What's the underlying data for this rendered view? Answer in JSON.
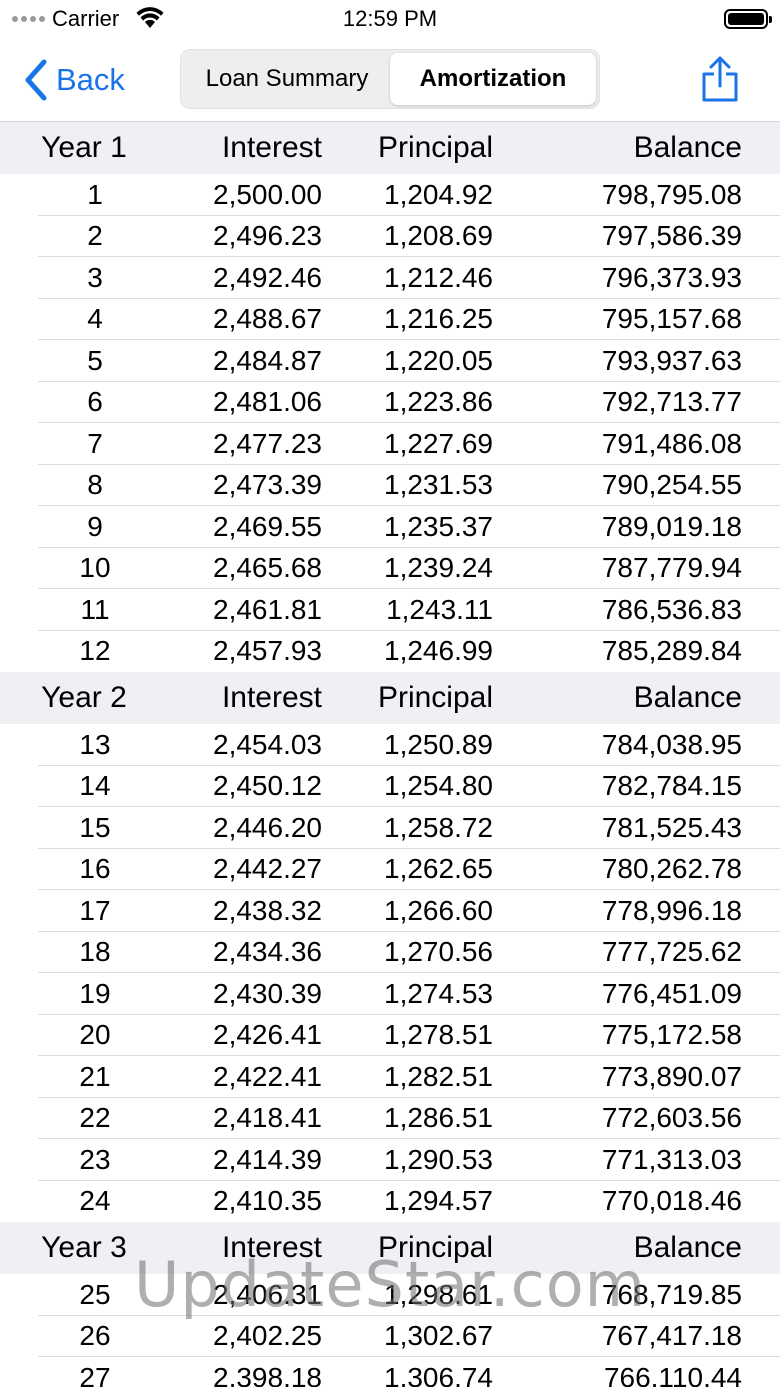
{
  "status_bar": {
    "carrier": "Carrier",
    "time": "12:59 PM"
  },
  "nav": {
    "back_label": "Back",
    "segments": [
      {
        "label": "Loan Summary",
        "selected": false
      },
      {
        "label": "Amortization",
        "selected": true
      }
    ],
    "accent_color": "#1a73e8"
  },
  "table": {
    "columns": [
      "Interest",
      "Principal",
      "Balance"
    ],
    "sections": [
      {
        "title": "Year 1",
        "rows": [
          [
            "1",
            "2,500.00",
            "1,204.92",
            "798,795.08"
          ],
          [
            "2",
            "2,496.23",
            "1,208.69",
            "797,586.39"
          ],
          [
            "3",
            "2,492.46",
            "1,212.46",
            "796,373.93"
          ],
          [
            "4",
            "2,488.67",
            "1,216.25",
            "795,157.68"
          ],
          [
            "5",
            "2,484.87",
            "1,220.05",
            "793,937.63"
          ],
          [
            "6",
            "2,481.06",
            "1,223.86",
            "792,713.77"
          ],
          [
            "7",
            "2,477.23",
            "1,227.69",
            "791,486.08"
          ],
          [
            "8",
            "2,473.39",
            "1,231.53",
            "790,254.55"
          ],
          [
            "9",
            "2,469.55",
            "1,235.37",
            "789,019.18"
          ],
          [
            "10",
            "2,465.68",
            "1,239.24",
            "787,779.94"
          ],
          [
            "11",
            "2,461.81",
            "1,243.11",
            "786,536.83"
          ],
          [
            "12",
            "2,457.93",
            "1,246.99",
            "785,289.84"
          ]
        ]
      },
      {
        "title": "Year 2",
        "rows": [
          [
            "13",
            "2,454.03",
            "1,250.89",
            "784,038.95"
          ],
          [
            "14",
            "2,450.12",
            "1,254.80",
            "782,784.15"
          ],
          [
            "15",
            "2,446.20",
            "1,258.72",
            "781,525.43"
          ],
          [
            "16",
            "2,442.27",
            "1,262.65",
            "780,262.78"
          ],
          [
            "17",
            "2,438.32",
            "1,266.60",
            "778,996.18"
          ],
          [
            "18",
            "2,434.36",
            "1,270.56",
            "777,725.62"
          ],
          [
            "19",
            "2,430.39",
            "1,274.53",
            "776,451.09"
          ],
          [
            "20",
            "2,426.41",
            "1,278.51",
            "775,172.58"
          ],
          [
            "21",
            "2,422.41",
            "1,282.51",
            "773,890.07"
          ],
          [
            "22",
            "2,418.41",
            "1,286.51",
            "772,603.56"
          ],
          [
            "23",
            "2,414.39",
            "1,290.53",
            "771,313.03"
          ],
          [
            "24",
            "2,410.35",
            "1,294.57",
            "770,018.46"
          ]
        ]
      },
      {
        "title": "Year 3",
        "rows": [
          [
            "25",
            "2,406.31",
            "1,298.61",
            "768,719.85"
          ],
          [
            "26",
            "2,402.25",
            "1,302.67",
            "767,417.18"
          ],
          [
            "27",
            "2,398.18",
            "1,306.74",
            "766,110.44"
          ]
        ]
      }
    ]
  },
  "watermark": "UpdateStar.com"
}
